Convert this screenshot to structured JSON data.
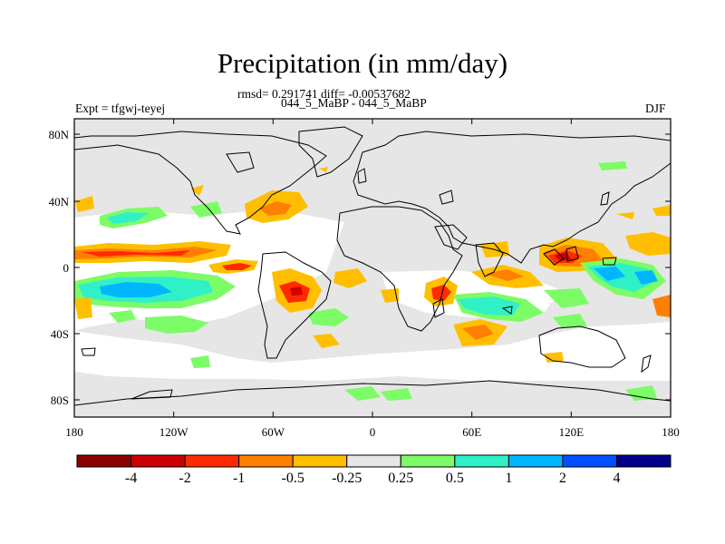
{
  "title": "Precipitation (in mm/day)",
  "stats_line": "rmsd= 0.291741 diff= -0.00537682",
  "models_line": "044_5_MaBP - 044_5_MaBP",
  "experiment": "Expt = tfgwj-teyej",
  "season": "DJF",
  "lat_ticks": [
    "80N",
    "40N",
    "0",
    "40S",
    "80S"
  ],
  "lon_ticks": [
    "180",
    "120W",
    "60W",
    "0",
    "60E",
    "120E",
    "180"
  ],
  "colorbar": {
    "colors": [
      "#8b0000",
      "#cc0000",
      "#ff2a00",
      "#ff7f00",
      "#ffbf00",
      "#e6e6e6",
      "#7cfc66",
      "#30f0c8",
      "#00b7ff",
      "#0050ff",
      "#00008b"
    ],
    "labels": [
      "-4",
      "-2",
      "-1",
      "-0.5",
      "-0.25",
      "0.25",
      "0.5",
      "1",
      "2",
      "4"
    ]
  },
  "colors": {
    "background": "#e6e6e6",
    "coast": "#000000"
  }
}
